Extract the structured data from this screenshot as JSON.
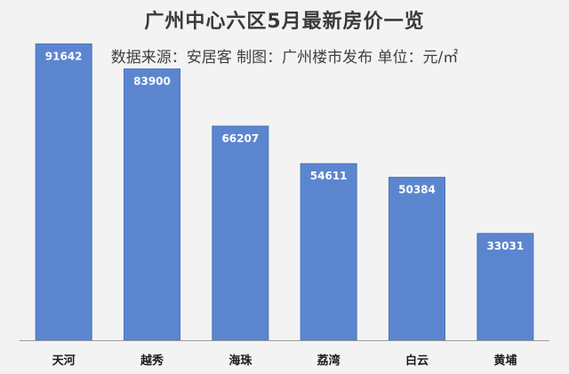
{
  "chart_data": {
    "type": "bar",
    "title": "广州中心六区5月最新房价一览",
    "subtitle": "数据来源：安居客 制图：广州楼市发布 单位：元/㎡",
    "categories": [
      "天河",
      "越秀",
      "海珠",
      "荔湾",
      "白云",
      "黄埔"
    ],
    "values": [
      91642,
      83900,
      66207,
      54611,
      50384,
      33031
    ],
    "xlabel": "",
    "ylabel": "",
    "ylim": [
      0,
      100000
    ],
    "grid": false,
    "legend": "none",
    "colors": {
      "bar": "#5b86cf",
      "bar_stroke": "#4a74bb",
      "value_label": "#ffffff",
      "category_label": "#1a1a1a",
      "axis": "#9a9a9a",
      "background": "#f3f3f3"
    }
  }
}
